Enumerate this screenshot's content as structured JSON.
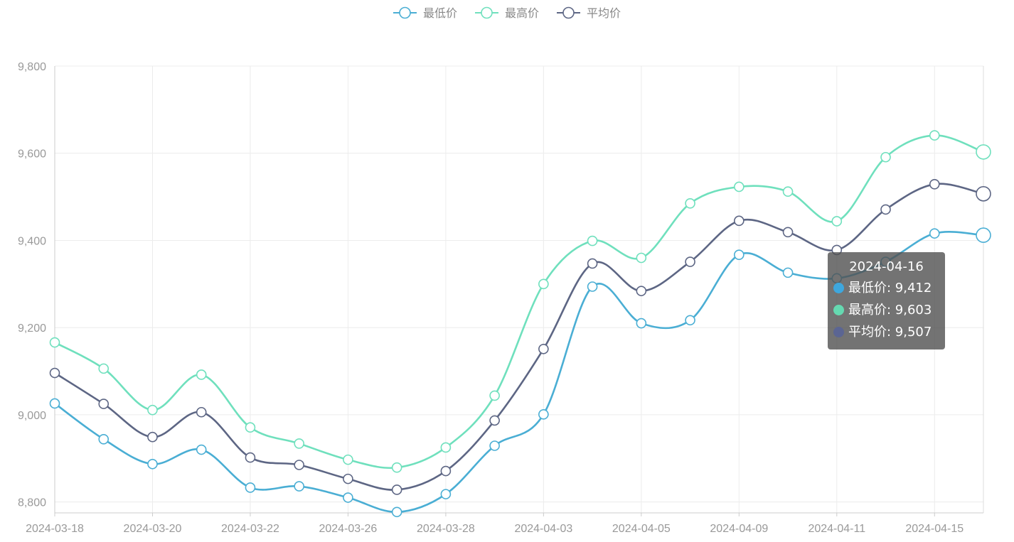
{
  "chart_data": {
    "type": "line",
    "title": "",
    "xlabel": "",
    "ylabel": "",
    "categories": [
      "2024-03-18",
      "2024-03-19",
      "2024-03-20",
      "2024-03-21",
      "2024-03-22",
      "2024-03-25",
      "2024-03-26",
      "2024-03-27",
      "2024-03-28",
      "2024-04-01",
      "2024-04-03",
      "2024-04-04",
      "2024-04-05",
      "2024-04-08",
      "2024-04-09",
      "2024-04-10",
      "2024-04-11",
      "2024-04-12",
      "2024-04-15",
      "2024-04-16"
    ],
    "x_tick_labels": [
      "2024-03-18",
      "2024-03-20",
      "2024-03-22",
      "2024-03-26",
      "2024-03-28",
      "2024-04-03",
      "2024-04-05",
      "2024-04-09",
      "2024-04-11",
      "2024-04-15"
    ],
    "ylim": [
      8775,
      9800
    ],
    "y_ticks": [
      8800,
      9000,
      9200,
      9400,
      9600,
      9800
    ],
    "y_tick_labels": [
      "8,800",
      "9,000",
      "9,200",
      "9,400",
      "9,600",
      "9,800"
    ],
    "grid": true,
    "legend_position": "top-center",
    "series": [
      {
        "name": "最低价",
        "color": "#4aaed4",
        "values": [
          9026,
          8944,
          8887,
          8920,
          8833,
          8836,
          8810,
          8777,
          8818,
          8929,
          9001,
          9294,
          9210,
          9217,
          9367,
          9326,
          9313,
          9351,
          9416,
          9412
        ]
      },
      {
        "name": "最高价",
        "color": "#6fe0bd",
        "values": [
          9166,
          9106,
          9011,
          9092,
          8971,
          8934,
          8897,
          8879,
          8925,
          9044,
          9300,
          9399,
          9360,
          9485,
          9523,
          9512,
          9444,
          9591,
          9641,
          9603
        ]
      },
      {
        "name": "平均价",
        "color": "#5d6684",
        "values": [
          9096,
          9025,
          8949,
          9006,
          8902,
          8885,
          8853,
          8828,
          8871,
          8987,
          9151,
          9347,
          9284,
          9351,
          9445,
          9419,
          9378,
          9471,
          9529,
          9507
        ]
      }
    ]
  },
  "tooltip": {
    "title": "2024-04-16",
    "rows": [
      {
        "label": "最低价: 9,412",
        "color": "#3ea7de"
      },
      {
        "label": "最高价: 9,603",
        "color": "#65d9b1"
      },
      {
        "label": "平均价: 9,507",
        "color": "#5b6593"
      }
    ]
  }
}
